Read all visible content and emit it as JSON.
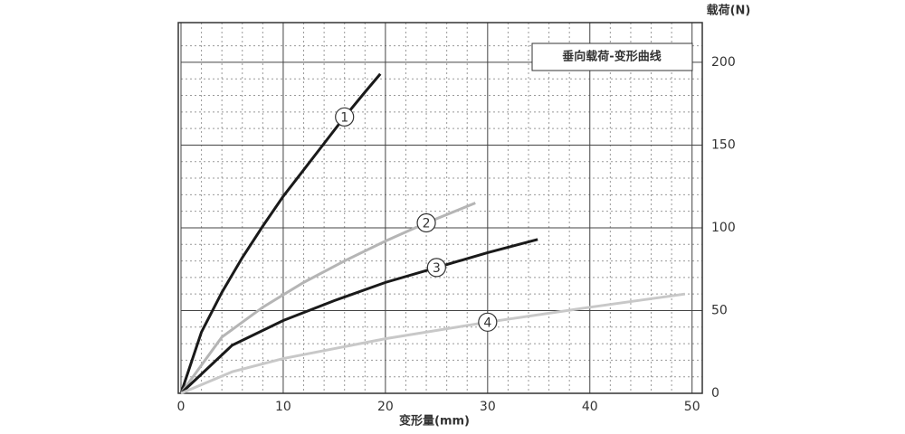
{
  "chart_data": {
    "type": "line",
    "title": "垂向载荷-变形曲线",
    "x_label": "变形量(mm)",
    "y_label": "载荷(N)",
    "xlim": [
      0,
      51
    ],
    "xticks": [
      0,
      10,
      20,
      30,
      40,
      50
    ],
    "ylim": [
      0,
      224
    ],
    "yticks": [
      0,
      50,
      100,
      150,
      200
    ],
    "grid": true,
    "y_axis_side": "right",
    "series": [
      {
        "name": "1",
        "color": "#1a1a1a",
        "x": [
          0,
          2,
          4,
          6,
          8,
          10,
          12,
          14,
          16,
          18,
          19.5
        ],
        "values": [
          0,
          37,
          61,
          82,
          101,
          119,
          135,
          151,
          167,
          182,
          193
        ]
      },
      {
        "name": "2",
        "color": "#b5b5b5",
        "x": [
          0,
          4,
          8,
          12,
          16,
          20,
          24,
          28.8
        ],
        "values": [
          0,
          34,
          52,
          67,
          80,
          92,
          103,
          115
        ]
      },
      {
        "name": "3",
        "color": "#1a1a1a",
        "x": [
          0,
          5,
          10,
          15,
          20,
          25,
          30,
          34.9
        ],
        "values": [
          0,
          29,
          44,
          56,
          67,
          76,
          85,
          93
        ]
      },
      {
        "name": "4",
        "color": "#c8c8c8",
        "x": [
          0,
          5,
          10,
          20,
          30,
          40,
          49.3
        ],
        "values": [
          0,
          13,
          21,
          33,
          43,
          52,
          60
        ]
      }
    ]
  }
}
